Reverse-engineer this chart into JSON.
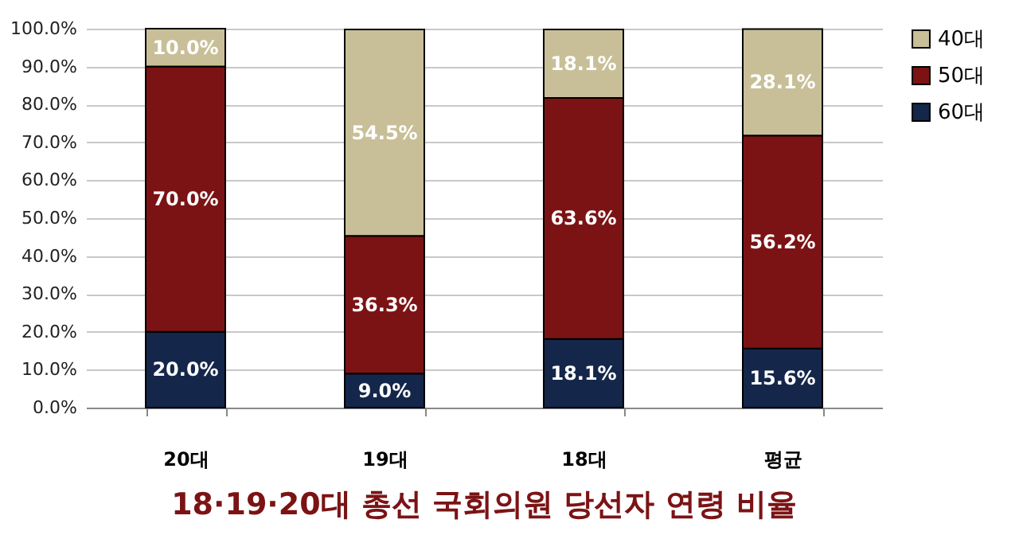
{
  "chart_data": {
    "type": "bar",
    "title": "18·19·20대 총선 국회의원 당선자 연령 비율",
    "stacked": true,
    "categories": [
      "20대",
      "19대",
      "18대",
      "평균"
    ],
    "series": [
      {
        "name": "60대",
        "color": "#14264a",
        "values": [
          20.0,
          9.0,
          18.1,
          15.6
        ],
        "value_labels": [
          "20.0%",
          "9.0%",
          "18.1%",
          "15.6%"
        ]
      },
      {
        "name": "50대",
        "color": "#7b1315",
        "values": [
          70.0,
          36.3,
          63.6,
          56.2
        ],
        "value_labels": [
          "70.0%",
          "36.3%",
          "63.6%",
          "56.2%"
        ]
      },
      {
        "name": "40대",
        "color": "#c8bf98",
        "values": [
          10.0,
          54.5,
          18.1,
          28.1
        ],
        "value_labels": [
          "10.0%",
          "54.5%",
          "18.1%",
          "28.1%"
        ]
      }
    ],
    "ylim": [
      0,
      100
    ],
    "yticks": [
      {
        "value": 0,
        "label": "0.0%"
      },
      {
        "value": 10,
        "label": "10.0%"
      },
      {
        "value": 20,
        "label": "20.0%"
      },
      {
        "value": 30,
        "label": "30.0%"
      },
      {
        "value": 40,
        "label": "40.0%"
      },
      {
        "value": 50,
        "label": "50.0%"
      },
      {
        "value": 60,
        "label": "60.0%"
      },
      {
        "value": 70,
        "label": "70.0%"
      },
      {
        "value": 80,
        "label": "80.0%"
      },
      {
        "value": 90,
        "label": "90.0%"
      },
      {
        "value": 100,
        "label": "100.0%"
      }
    ],
    "grid": "y",
    "legend": "right"
  }
}
